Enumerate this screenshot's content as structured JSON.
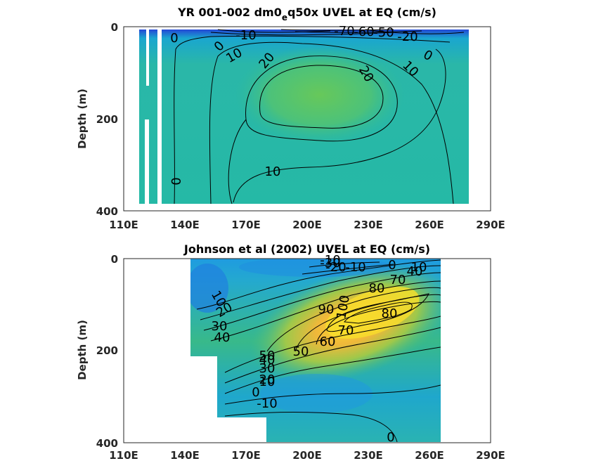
{
  "chart_data": [
    {
      "type": "contour",
      "title": "YR 001-002 dm0_eq50x UVEL at EQ (cm/s)",
      "title_main_before": "YR 001-002 dm0",
      "title_sub": "e",
      "title_main_after": "q50x UVEL at EQ (cm/s)",
      "xlabel": "",
      "ylabel": "Depth (m)",
      "xlim": [
        110,
        290
      ],
      "ylim": [
        400,
        0
      ],
      "xticks": [
        "110E",
        "140E",
        "170E",
        "200E",
        "230E",
        "260E",
        "290E"
      ],
      "yticks": [
        "0",
        "200",
        "400"
      ],
      "contour_labels": [
        "-10",
        "0",
        "0",
        "10",
        "20",
        "20",
        "10",
        "0",
        "10",
        "0",
        "-70",
        "-60",
        "-50",
        "-20"
      ],
      "colors": {
        "low": "#2a5fd8",
        "mid": "#1fb3b3",
        "high": "#5bc85a"
      }
    },
    {
      "type": "contour",
      "title": "Johnson et al (2002) UVEL at EQ (cm/s)",
      "xlabel": "",
      "ylabel": "Depth (m)",
      "xlim": [
        110,
        290
      ],
      "ylim": [
        400,
        0
      ],
      "xticks": [
        "110E",
        "140E",
        "170E",
        "200E",
        "230E",
        "260E",
        "290E"
      ],
      "yticks": [
        "0",
        "200",
        "400"
      ],
      "contour_labels": [
        "-30",
        "-20",
        "-10",
        "0",
        "10",
        "10",
        "20",
        "30",
        "40",
        "50",
        "60",
        "70",
        "80",
        "80",
        "90",
        "100",
        "50",
        "40",
        "30",
        "20",
        "10",
        "0",
        "-10",
        "0",
        "-10",
        "70",
        "40"
      ],
      "colors": {
        "low": "#1f8fe0",
        "mid": "#2ab7a0",
        "high": "#f2c94c",
        "peak": "#f7e32e"
      }
    }
  ]
}
